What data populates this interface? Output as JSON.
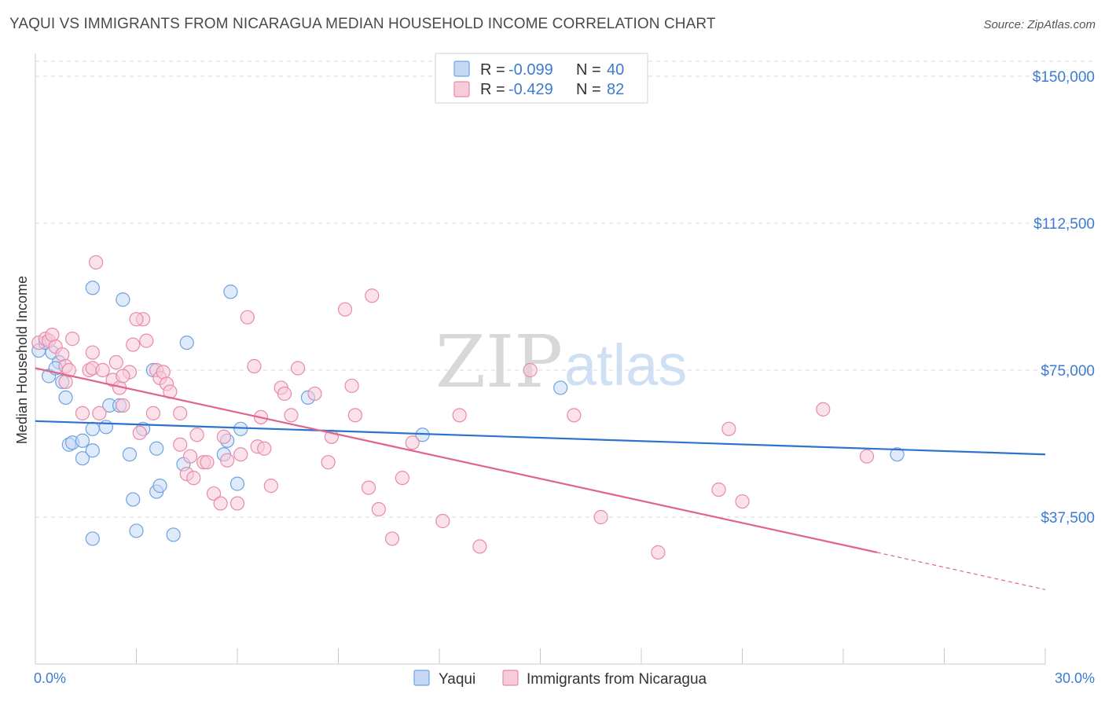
{
  "title": "YAQUI VS IMMIGRANTS FROM NICARAGUA MEDIAN HOUSEHOLD INCOME CORRELATION CHART",
  "source": "Source: ZipAtlas.com",
  "watermark": {
    "zip": "ZIP",
    "atlas": "atlas"
  },
  "legend": {
    "rows": [
      {
        "r_label": "R = ",
        "r_value": "-0.099",
        "n_label": "N = ",
        "n_value": "40",
        "color": "#6fa2e0",
        "fill": "#c5d9f5"
      },
      {
        "r_label": "R = ",
        "r_value": "-0.429",
        "n_label": "N = ",
        "n_value": "82",
        "color": "#e88aa9",
        "fill": "#f8cbd9"
      }
    ]
  },
  "bottom_legend": [
    "Yaqui",
    "Immigrants from Nicaragua"
  ],
  "chart_data": {
    "type": "scatter",
    "xlabel": "",
    "ylabel": "Median Household Income",
    "xlim": [
      0,
      30
    ],
    "ylim": [
      0,
      150000
    ],
    "x_tick_labels": [
      "0.0%",
      "30.0%"
    ],
    "y_ticks": [
      37500,
      75000,
      112500,
      150000
    ],
    "y_tick_labels": [
      "$37,500",
      "$75,000",
      "$112,500",
      "$150,000"
    ],
    "grid": "horizontal dashed",
    "series": [
      {
        "name": "Yaqui",
        "color": "#6fa2e0",
        "fill": "#c5d9f5",
        "line_color": "#2e72cf",
        "trend": {
          "x0": 0,
          "y0": 62000,
          "x1": 30,
          "y1": 53500
        },
        "points": [
          [
            0.1,
            80000
          ],
          [
            0.3,
            82000
          ],
          [
            0.5,
            79500
          ],
          [
            0.4,
            73500
          ],
          [
            0.7,
            77000
          ],
          [
            0.8,
            72000
          ],
          [
            0.6,
            75500
          ],
          [
            0.9,
            68000
          ],
          [
            1.0,
            56000
          ],
          [
            1.1,
            56500
          ],
          [
            1.4,
            57000
          ],
          [
            1.4,
            52500
          ],
          [
            1.7,
            60000
          ],
          [
            1.7,
            54500
          ],
          [
            2.1,
            60500
          ],
          [
            2.2,
            66000
          ],
          [
            2.5,
            66000
          ],
          [
            2.8,
            53500
          ],
          [
            2.9,
            42000
          ],
          [
            3.2,
            60000
          ],
          [
            3.6,
            55000
          ],
          [
            3.6,
            44000
          ],
          [
            3.7,
            45500
          ],
          [
            4.1,
            33000
          ],
          [
            4.4,
            51000
          ],
          [
            5.7,
            57000
          ],
          [
            5.6,
            53500
          ],
          [
            6.1,
            60000
          ],
          [
            6.0,
            46000
          ],
          [
            1.7,
            96000
          ],
          [
            2.6,
            93000
          ],
          [
            4.5,
            82000
          ],
          [
            5.8,
            95000
          ],
          [
            1.7,
            32000
          ],
          [
            3.0,
            34000
          ],
          [
            8.1,
            68000
          ],
          [
            11.5,
            58500
          ],
          [
            15.6,
            70500
          ],
          [
            25.6,
            53500
          ],
          [
            3.5,
            75000
          ]
        ]
      },
      {
        "name": "Immigrants from Nicaragua",
        "color": "#e88aa9",
        "fill": "#f8cbd9",
        "line_color": "#e0648f",
        "trend": {
          "x0": 0,
          "y0": 75500,
          "x1": 25,
          "y1": 28500
        },
        "trend_dashed": {
          "x0": 25,
          "y0": 28500,
          "x1": 30,
          "y1": 19000
        },
        "points": [
          [
            0.1,
            82000
          ],
          [
            0.3,
            83000
          ],
          [
            0.4,
            82500
          ],
          [
            0.5,
            84000
          ],
          [
            0.6,
            81000
          ],
          [
            0.8,
            79000
          ],
          [
            0.9,
            76000
          ],
          [
            0.9,
            72000
          ],
          [
            1.0,
            75000
          ],
          [
            1.1,
            83000
          ],
          [
            1.4,
            64000
          ],
          [
            1.6,
            75000
          ],
          [
            1.7,
            75500
          ],
          [
            1.7,
            79500
          ],
          [
            1.9,
            64000
          ],
          [
            2.0,
            75000
          ],
          [
            2.3,
            72500
          ],
          [
            2.4,
            77000
          ],
          [
            2.5,
            70500
          ],
          [
            2.6,
            66000
          ],
          [
            2.8,
            74500
          ],
          [
            2.9,
            81500
          ],
          [
            3.1,
            59000
          ],
          [
            3.2,
            88000
          ],
          [
            3.3,
            82500
          ],
          [
            3.5,
            64000
          ],
          [
            3.6,
            75000
          ],
          [
            3.7,
            73000
          ],
          [
            3.8,
            74500
          ],
          [
            3.9,
            71500
          ],
          [
            4.0,
            69500
          ],
          [
            4.3,
            64000
          ],
          [
            4.3,
            56000
          ],
          [
            4.5,
            48500
          ],
          [
            4.6,
            53000
          ],
          [
            4.7,
            47500
          ],
          [
            4.8,
            58500
          ],
          [
            5.0,
            51500
          ],
          [
            5.1,
            51500
          ],
          [
            5.3,
            43500
          ],
          [
            5.5,
            41000
          ],
          [
            5.6,
            58000
          ],
          [
            5.7,
            52000
          ],
          [
            6.0,
            41000
          ],
          [
            6.1,
            53500
          ],
          [
            6.3,
            88500
          ],
          [
            6.5,
            76000
          ],
          [
            6.6,
            55500
          ],
          [
            6.7,
            63000
          ],
          [
            6.8,
            55000
          ],
          [
            7.0,
            45500
          ],
          [
            7.3,
            70500
          ],
          [
            7.4,
            69000
          ],
          [
            7.6,
            63500
          ],
          [
            7.8,
            75500
          ],
          [
            8.3,
            69000
          ],
          [
            8.7,
            51500
          ],
          [
            8.8,
            58000
          ],
          [
            9.2,
            90500
          ],
          [
            9.4,
            71000
          ],
          [
            9.5,
            63500
          ],
          [
            9.9,
            45000
          ],
          [
            10.2,
            39500
          ],
          [
            10.6,
            32000
          ],
          [
            10.9,
            47500
          ],
          [
            11.2,
            56500
          ],
          [
            12.1,
            36500
          ],
          [
            12.6,
            63500
          ],
          [
            13.2,
            30000
          ],
          [
            14.7,
            75000
          ],
          [
            16.0,
            63500
          ],
          [
            16.8,
            37500
          ],
          [
            18.5,
            28500
          ],
          [
            20.3,
            44500
          ],
          [
            20.6,
            60000
          ],
          [
            21.0,
            41500
          ],
          [
            23.4,
            65000
          ],
          [
            24.7,
            53000
          ],
          [
            1.8,
            102500
          ],
          [
            10.0,
            94000
          ],
          [
            3.0,
            88000
          ],
          [
            2.6,
            73500
          ]
        ]
      }
    ]
  }
}
